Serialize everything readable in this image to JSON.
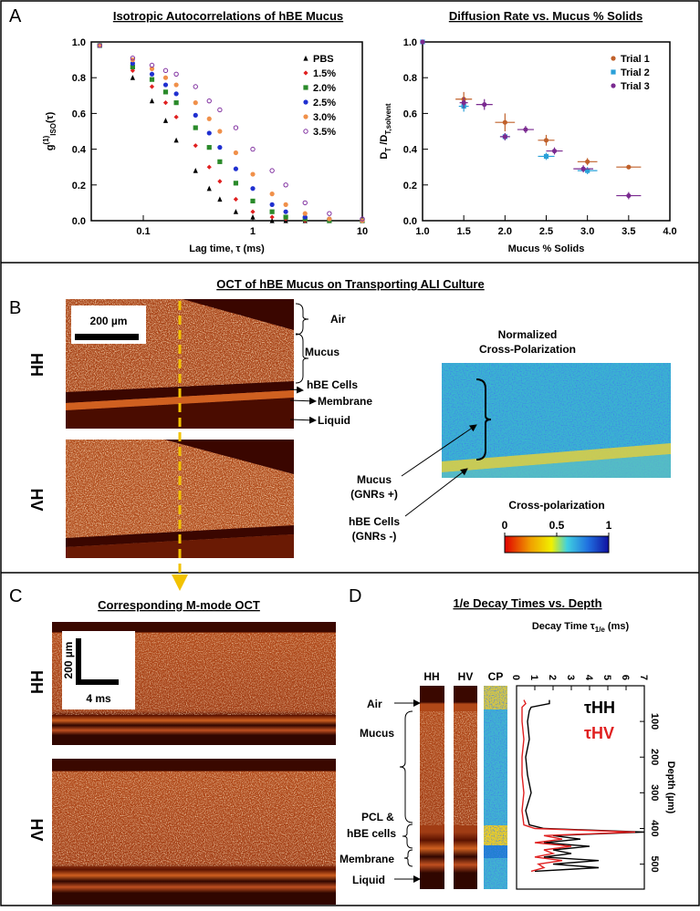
{
  "panel_labels": [
    "A",
    "B",
    "C",
    "D"
  ],
  "chart_data": [
    {
      "type": "scatter",
      "title": "Isotropic Autocorrelations of hBE Mucus",
      "xlabel": "Lag time, τ (ms)",
      "ylabel": [
        "g",
        "(1)",
        "ISO",
        "(τ)"
      ],
      "x": [
        0.04,
        0.08,
        0.12,
        0.16,
        0.2,
        0.3,
        0.4,
        0.5,
        0.7,
        1,
        1.5,
        2,
        3,
        5,
        10
      ],
      "series": [
        {
          "name": "PBS",
          "color": "#000000",
          "marker": "triangle",
          "values": [
            0.98,
            0.8,
            0.67,
            0.56,
            0.45,
            0.28,
            0.18,
            0.12,
            0.05,
            0.02,
            0,
            0,
            0,
            0,
            0
          ]
        },
        {
          "name": "1.5%",
          "color": "#e02020",
          "marker": "diamond",
          "values": [
            0.98,
            0.84,
            0.75,
            0.66,
            0.58,
            0.42,
            0.3,
            0.22,
            0.12,
            0.05,
            0.02,
            0.01,
            0,
            0,
            0
          ]
        },
        {
          "name": "2.0%",
          "color": "#2a8a2a",
          "marker": "square",
          "values": [
            0.98,
            0.86,
            0.79,
            0.72,
            0.66,
            0.52,
            0.41,
            0.33,
            0.21,
            0.11,
            0.05,
            0.02,
            0.01,
            0,
            0
          ]
        },
        {
          "name": "2.5%",
          "color": "#2030d0",
          "marker": "circle",
          "values": [
            0.98,
            0.88,
            0.82,
            0.76,
            0.71,
            0.59,
            0.49,
            0.41,
            0.29,
            0.18,
            0.09,
            0.05,
            0.02,
            0.01,
            0
          ]
        },
        {
          "name": "3.0%",
          "color": "#f0904a",
          "marker": "circle",
          "values": [
            0.98,
            0.9,
            0.85,
            0.8,
            0.76,
            0.66,
            0.57,
            0.5,
            0.38,
            0.26,
            0.15,
            0.09,
            0.04,
            0.01,
            0
          ]
        },
        {
          "name": "3.5%",
          "color": "#8030a0",
          "marker": "open-circle",
          "values": [
            0.98,
            0.91,
            0.87,
            0.84,
            0.82,
            0.75,
            0.67,
            0.62,
            0.52,
            0.4,
            0.28,
            0.2,
            0.1,
            0.04,
            0.01
          ]
        }
      ],
      "xlog": true,
      "xlim": [
        0.0335,
        10
      ],
      "xticks": [
        0.1,
        1,
        10
      ],
      "ylim": [
        0,
        1
      ],
      "yticks": [
        {
          "value": 0,
          "label": "0.0"
        },
        0.2,
        0.4,
        0.6,
        0.8,
        {
          "value": 1,
          "label": "1.0"
        }
      ],
      "legend": "upper right"
    },
    {
      "type": "errorbar",
      "title": "Diffusion Rate vs. Mucus % Solids",
      "xlabel": "Mucus % Solids",
      "ylabel": [
        "D",
        "T",
        " /D",
        "T,solvent"
      ],
      "series": [
        {
          "name": "Trial 1",
          "color": "#c0602a",
          "marker": "circle",
          "x": [
            1,
            1.5,
            2,
            2.5,
            3,
            3.5
          ],
          "values": [
            1,
            0.68,
            0.55,
            0.45,
            0.33,
            0.3
          ],
          "xerr": [
            0,
            0.1,
            0.12,
            0.1,
            0.12,
            0.15
          ],
          "yerr": [
            0,
            0.04,
            0.05,
            0.03,
            0.02,
            0.01
          ]
        },
        {
          "name": "Trial 2",
          "color": "#2aa0d8",
          "marker": "square",
          "x": [
            1,
            1.5,
            2,
            2.5,
            3
          ],
          "values": [
            1,
            0.64,
            0.47,
            0.36,
            0.28
          ],
          "xerr": [
            0,
            0.06,
            0.06,
            0.1,
            0.12
          ],
          "yerr": [
            0,
            0.03,
            0.02,
            0.02,
            0.02
          ]
        },
        {
          "name": "Trial 3",
          "color": "#7a2a90",
          "marker": "circle",
          "x": [
            1,
            1.5,
            1.75,
            2,
            2.25,
            2.6,
            2.95,
            3.5
          ],
          "values": [
            1,
            0.66,
            0.65,
            0.47,
            0.51,
            0.39,
            0.29,
            0.14
          ],
          "xerr": [
            0,
            0.05,
            0.1,
            0.06,
            0.1,
            0.1,
            0.12,
            0.15
          ],
          "yerr": [
            0,
            0.03,
            0.03,
            0.02,
            0.02,
            0.02,
            0.02,
            0.02
          ]
        }
      ],
      "xlim": [
        1,
        4
      ],
      "xticks": [
        {
          "value": 1,
          "label": "1.0"
        },
        1.5,
        {
          "value": 2,
          "label": "2.0"
        },
        2.5,
        {
          "value": 3,
          "label": "3.0"
        },
        3.5,
        {
          "value": 4,
          "label": "4.0"
        }
      ],
      "ylim": [
        0,
        1
      ],
      "yticks": [
        {
          "value": 0,
          "label": "0.0"
        },
        0.2,
        0.4,
        0.6,
        0.8,
        {
          "value": 1,
          "label": "1.0"
        }
      ],
      "legend": "upper right"
    },
    {
      "type": "profile",
      "title": "1/e Decay Times vs. Depth",
      "xlabel": [
        "Decay Time τ",
        "1/e",
        " (ms)"
      ],
      "ylabel": "Depth (µm)",
      "y": [
        40,
        50,
        60,
        70,
        100,
        150,
        200,
        250,
        300,
        350,
        390,
        400,
        410,
        420,
        430,
        440,
        450,
        460,
        470,
        480,
        490,
        500,
        510,
        520
      ],
      "series": [
        {
          "name": "τHH",
          "color": "#000000",
          "values": [
            1.8,
            1.8,
            0.8,
            0.7,
            0.6,
            0.7,
            0.5,
            0.6,
            0.8,
            0.5,
            0.7,
            1.5,
            7,
            2,
            3.5,
            1.5,
            4,
            2,
            3,
            1.5,
            4.5,
            2,
            4.5,
            1
          ]
        },
        {
          "name": "τHV",
          "color": "#e02020",
          "values": [
            0.4,
            0.5,
            0.3,
            0.3,
            0.3,
            0.4,
            0.3,
            0.3,
            0.4,
            0.3,
            0.4,
            1,
            6.5,
            1.5,
            2.5,
            1,
            3,
            1.5,
            2,
            1,
            2.5,
            1.2,
            1.5,
            0.8
          ]
        }
      ],
      "xlim": [
        0,
        7
      ],
      "xticks": [
        0,
        1,
        2,
        3,
        4,
        5,
        6,
        7
      ],
      "ylim": [
        0,
        570
      ],
      "yticks": [
        100,
        200,
        300,
        400,
        500
      ],
      "xaxis": "top",
      "yaxis": "right"
    }
  ],
  "panel_b": {
    "title": "OCT of hBE Mucus on Transporting ALI Culture",
    "scale_bar": "200 µm",
    "rows": [
      "HH",
      "HV"
    ],
    "layers": [
      "Air",
      "Mucus",
      "hBE Cells",
      "Membrane",
      "Liquid"
    ],
    "cp_title": [
      "Normalized",
      "Cross-Polarization"
    ],
    "cp_labels": [
      [
        "Mucus",
        "(GNRs +)"
      ],
      [
        "hBE Cells",
        "(GNRs -)"
      ]
    ],
    "colorbar": {
      "label": "Cross-polarization",
      "lim": [
        0,
        1
      ],
      "ticks": [
        0,
        0.5,
        1
      ]
    }
  },
  "panel_c": {
    "title": "Corresponding M-mode OCT",
    "scale_y": "200 µm",
    "scale_x": "4 ms",
    "rows": [
      "HH",
      "HV"
    ]
  },
  "panel_d": {
    "columns": [
      "HH",
      "HV",
      "CP"
    ],
    "layers": [
      "Air",
      "Mucus",
      [
        "PCL &",
        "hBE cells"
      ],
      "Membrane",
      "Liquid"
    ]
  }
}
